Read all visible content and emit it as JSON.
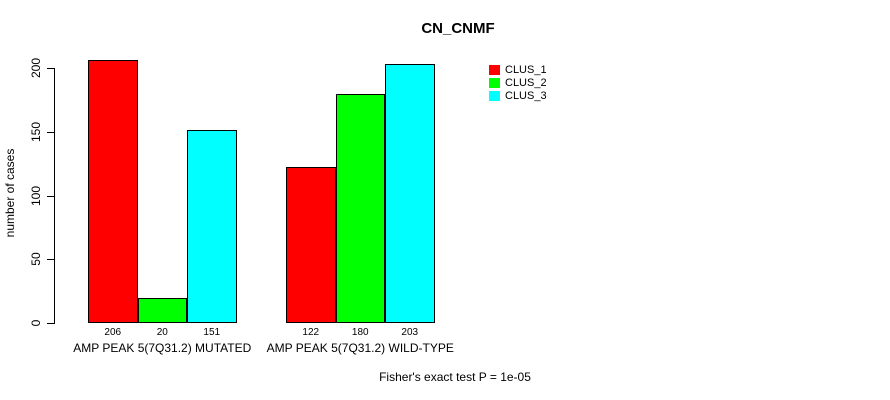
{
  "chart_data": {
    "type": "bar",
    "title": "CN_CNMF",
    "ylabel": "number of cases",
    "xlabel": "",
    "ylim": [
      0,
      200
    ],
    "yticks": [
      0,
      50,
      100,
      150,
      200
    ],
    "grid": false,
    "legend_position": "top-right",
    "categories": [
      "AMP PEAK 5(7Q31.2) MUTATED",
      "AMP PEAK 5(7Q31.2) WILD-TYPE"
    ],
    "series": [
      {
        "name": "CLUS_1",
        "color": "#ff0000",
        "values": [
          206,
          122
        ]
      },
      {
        "name": "CLUS_2",
        "color": "#00ff00",
        "values": [
          20,
          180
        ]
      },
      {
        "name": "CLUS_3",
        "color": "#00ffff",
        "values": [
          151,
          203
        ]
      }
    ],
    "bar_value_labels": [
      [
        "206",
        "20",
        "151"
      ],
      [
        "122",
        "180",
        "203"
      ]
    ],
    "annotation": "Fisher's exact test P = 1e-05"
  },
  "colors": {
    "background": "#ffffff",
    "axis": "#000000",
    "text": "#000000"
  }
}
